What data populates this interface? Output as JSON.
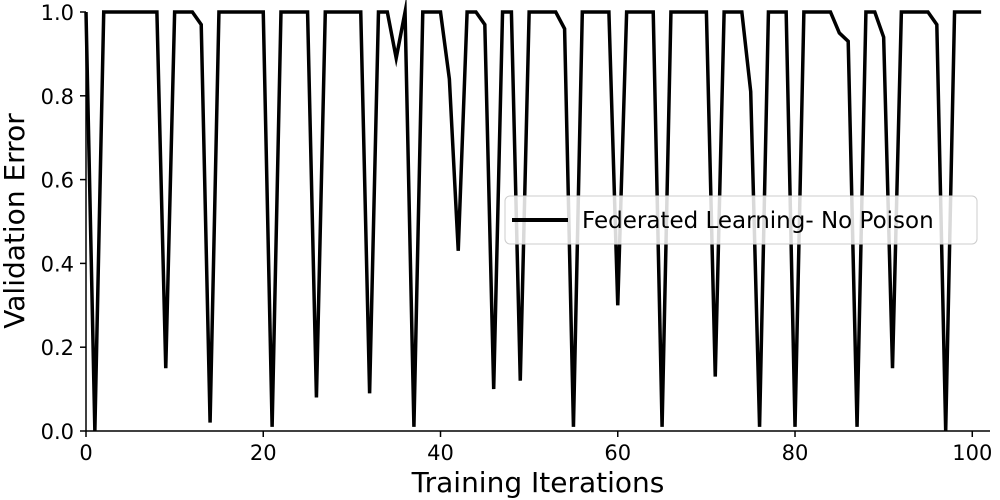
{
  "chart_data": {
    "type": "line",
    "xlabel": "Training Iterations",
    "ylabel": "Validation Error",
    "xlim": [
      0,
      102
    ],
    "ylim": [
      0,
      1.0
    ],
    "xticks": [
      "0",
      "20",
      "40",
      "60",
      "80",
      "100"
    ],
    "yticks": [
      "0.0",
      "0.2",
      "0.4",
      "0.6",
      "0.8",
      "1.0"
    ],
    "grid": false,
    "legend_position": "center-right",
    "series": [
      {
        "name": "Federated Learning- No Poison",
        "color": "#000000",
        "x": [
          0,
          1,
          2,
          3,
          4,
          5,
          6,
          7,
          8,
          9,
          10,
          11,
          12,
          13,
          14,
          15,
          16,
          17,
          18,
          19,
          20,
          21,
          22,
          23,
          24,
          25,
          26,
          27,
          28,
          29,
          30,
          31,
          32,
          33,
          34,
          35,
          36,
          37,
          38,
          39,
          40,
          41,
          42,
          43,
          44,
          45,
          46,
          47,
          48,
          49,
          50,
          51,
          52,
          53,
          54,
          55,
          56,
          57,
          58,
          59,
          60,
          61,
          62,
          63,
          64,
          65,
          66,
          67,
          68,
          69,
          70,
          71,
          72,
          73,
          74,
          75,
          76,
          77,
          78,
          79,
          80,
          81,
          82,
          83,
          84,
          85,
          86,
          87,
          88,
          89,
          90,
          91,
          92,
          93,
          94,
          95,
          96,
          97,
          98,
          99,
          100,
          101
        ],
        "values": [
          1.0,
          0.0,
          1.0,
          1.0,
          1.0,
          1.0,
          1.0,
          1.0,
          1.0,
          0.15,
          1.0,
          1.0,
          1.0,
          0.97,
          0.02,
          1.0,
          1.0,
          1.0,
          1.0,
          1.0,
          1.0,
          0.01,
          1.0,
          1.0,
          1.0,
          1.0,
          0.08,
          1.0,
          1.0,
          1.0,
          1.0,
          1.0,
          0.09,
          1.0,
          1.0,
          0.89,
          1.0,
          0.01,
          1.0,
          1.0,
          1.0,
          0.84,
          0.43,
          1.0,
          1.0,
          0.97,
          0.1,
          1.0,
          1.0,
          0.12,
          1.0,
          1.0,
          1.0,
          1.0,
          0.96,
          0.01,
          1.0,
          1.0,
          1.0,
          1.0,
          0.3,
          1.0,
          1.0,
          1.0,
          1.0,
          0.01,
          1.0,
          1.0,
          1.0,
          1.0,
          1.0,
          0.13,
          1.0,
          1.0,
          1.0,
          0.81,
          0.01,
          1.0,
          1.0,
          1.0,
          0.01,
          1.0,
          1.0,
          1.0,
          1.0,
          0.95,
          0.93,
          0.01,
          1.0,
          1.0,
          0.94,
          0.15,
          1.0,
          1.0,
          1.0,
          1.0,
          0.97,
          0.0,
          1.0,
          1.0,
          1.0,
          1.0
        ]
      }
    ]
  }
}
